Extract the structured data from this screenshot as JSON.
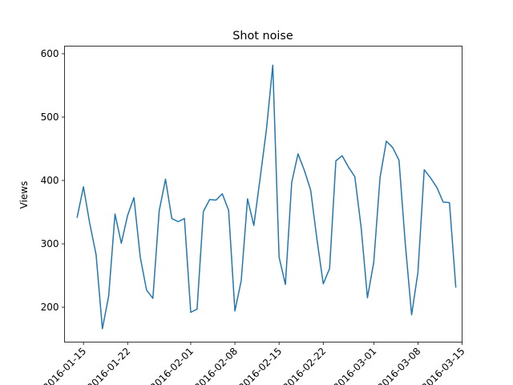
{
  "chart_data": {
    "type": "line",
    "title": "Shot noise",
    "xlabel": "",
    "ylabel": "Views",
    "x_tick_labels": [
      "2016-01-15",
      "2016-01-22",
      "2016-02-01",
      "2016-02-08",
      "2016-02-15",
      "2016-02-22",
      "2016-03-01",
      "2016-03-08",
      "2016-03-15"
    ],
    "x_tick_dates": [
      "2016-01-15",
      "2016-01-22",
      "2016-02-01",
      "2016-02-08",
      "2016-02-15",
      "2016-02-22",
      "2016-03-01",
      "2016-03-08",
      "2016-03-15"
    ],
    "xlim": [
      "2016-01-12",
      "2016-03-15"
    ],
    "ylim": [
      145,
      612
    ],
    "y_ticks": [
      200,
      300,
      400,
      500,
      600
    ],
    "grid": false,
    "line_color": "#1f77b4",
    "series": [
      {
        "x": [
          "2016-01-14",
          "2016-01-15",
          "2016-01-16",
          "2016-01-17",
          "2016-01-18",
          "2016-01-19",
          "2016-01-20",
          "2016-01-21",
          "2016-01-22",
          "2016-01-23",
          "2016-01-24",
          "2016-01-25",
          "2016-01-26",
          "2016-01-27",
          "2016-01-28",
          "2016-01-29",
          "2016-01-30",
          "2016-01-31",
          "2016-02-01",
          "2016-02-02",
          "2016-02-03",
          "2016-02-04",
          "2016-02-05",
          "2016-02-06",
          "2016-02-07",
          "2016-02-08",
          "2016-02-09",
          "2016-02-10",
          "2016-02-11",
          "2016-02-12",
          "2016-02-13",
          "2016-02-14",
          "2016-02-15",
          "2016-02-16",
          "2016-02-17",
          "2016-02-18",
          "2016-02-19",
          "2016-02-20",
          "2016-02-21",
          "2016-02-22",
          "2016-02-23",
          "2016-02-24",
          "2016-02-25",
          "2016-02-26",
          "2016-02-27",
          "2016-02-28",
          "2016-02-29",
          "2016-03-01",
          "2016-03-02",
          "2016-03-03",
          "2016-03-04",
          "2016-03-05",
          "2016-03-06",
          "2016-03-07",
          "2016-03-08",
          "2016-03-09",
          "2016-03-10",
          "2016-03-11",
          "2016-03-12",
          "2016-03-13",
          "2016-03-14"
        ],
        "values": [
          342,
          390,
          332,
          283,
          166,
          218,
          347,
          301,
          345,
          373,
          279,
          227,
          214,
          352,
          402,
          340,
          335,
          340,
          192,
          197,
          351,
          370,
          369,
          379,
          353,
          194,
          242,
          371,
          329,
          404,
          481,
          582,
          279,
          236,
          397,
          442,
          416,
          385,
          307,
          237,
          261,
          431,
          439,
          421,
          406,
          326,
          215,
          271,
          405,
          462,
          452,
          432,
          300,
          188,
          255,
          417,
          404,
          389,
          366,
          365,
          232
        ]
      }
    ]
  }
}
